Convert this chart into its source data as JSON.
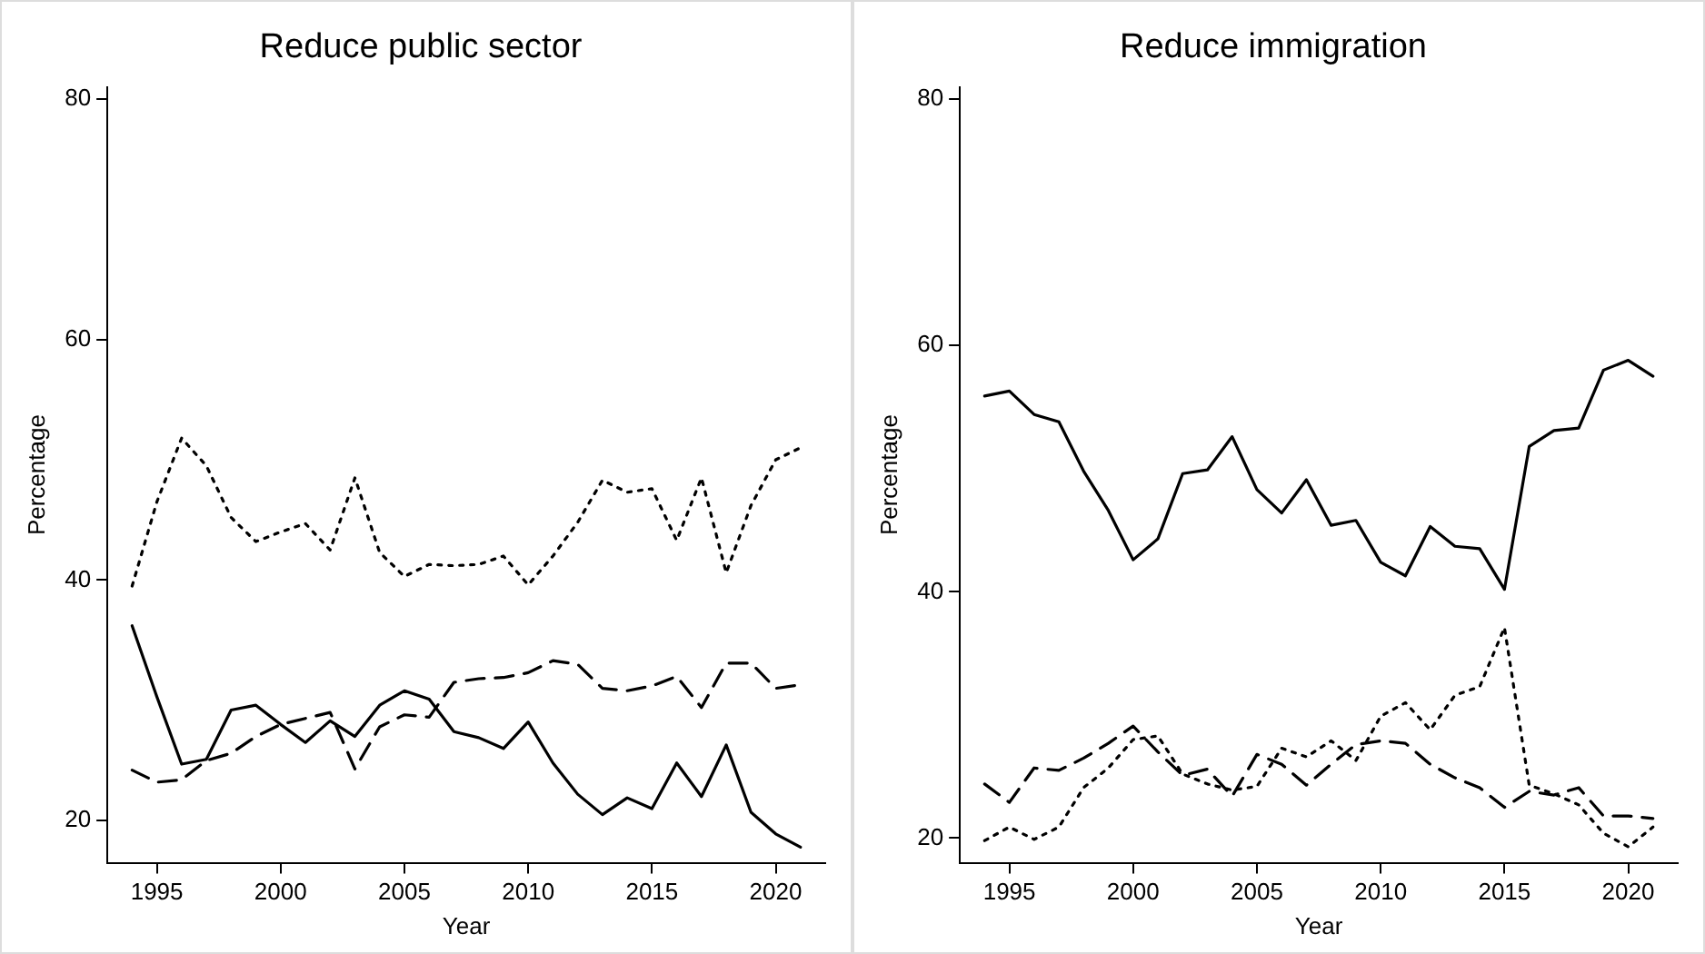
{
  "chart_data": [
    {
      "type": "line",
      "title": "Reduce public sector",
      "xlabel": "Year",
      "ylabel": "Percentage",
      "x": [
        1994,
        1995,
        1996,
        1997,
        1998,
        1999,
        2000,
        2001,
        2002,
        2003,
        2004,
        2005,
        2006,
        2007,
        2008,
        2009,
        2010,
        2011,
        2012,
        2013,
        2014,
        2015,
        2016,
        2017,
        2018,
        2019,
        2020,
        2021
      ],
      "xlim": [
        1993,
        2022
      ],
      "xticks": [
        1995,
        2000,
        2005,
        2010,
        2015,
        2020
      ],
      "ylim": [
        16.5,
        81
      ],
      "yticks": [
        20,
        40,
        60,
        80
      ],
      "grid": false,
      "legend": false,
      "marker": "none",
      "series": [
        {
          "color": "#000000",
          "line_style": "solid",
          "values": [
            36.2,
            30.3,
            24.7,
            25.1,
            29.2,
            29.6,
            28,
            26.5,
            28.3,
            27,
            29.6,
            30.8,
            30.1,
            27.4,
            26.9,
            26,
            28.2,
            24.8,
            22.2,
            20.5,
            21.9,
            21,
            24.8,
            22,
            26.3,
            20.7,
            18.9,
            17.8
          ]
        },
        {
          "color": "#000000",
          "line_style": "dashed",
          "values": [
            24.2,
            23.2,
            23.4,
            25,
            25.6,
            27,
            28,
            28.5,
            29,
            24.3,
            27.8,
            28.8,
            28.6,
            31.5,
            31.8,
            31.9,
            32.3,
            33.3,
            33,
            31,
            30.8,
            31.2,
            32,
            29.4,
            33.1,
            33.1,
            31,
            31.3
          ]
        },
        {
          "color": "#000000",
          "line_style": "dotted",
          "values": [
            39.5,
            46.5,
            51.8,
            49.5,
            45.2,
            43.2,
            44,
            44.7,
            42.5,
            48.5,
            42.3,
            40.3,
            41.3,
            41.2,
            41.3,
            42,
            39.6,
            42,
            44.8,
            48.3,
            47.3,
            47.6,
            43.3,
            48.5,
            40.6,
            46.2,
            50,
            51
          ]
        }
      ]
    },
    {
      "type": "line",
      "title": "Reduce immigration",
      "xlabel": "Year",
      "ylabel": "Percentage",
      "x": [
        1994,
        1995,
        1996,
        1997,
        1998,
        1999,
        2000,
        2001,
        2002,
        2003,
        2004,
        2005,
        2006,
        2007,
        2008,
        2009,
        2010,
        2011,
        2012,
        2013,
        2014,
        2015,
        2016,
        2017,
        2018,
        2019,
        2020,
        2021
      ],
      "xlim": [
        1993,
        2022
      ],
      "xticks": [
        1995,
        2000,
        2005,
        2010,
        2015,
        2020
      ],
      "ylim": [
        18,
        81
      ],
      "yticks": [
        20,
        40,
        60,
        80
      ],
      "grid": false,
      "legend": false,
      "marker": "none",
      "series": [
        {
          "color": "#000000",
          "line_style": "solid",
          "values": [
            55.9,
            56.3,
            54.4,
            53.8,
            49.8,
            46.6,
            42.6,
            44.3,
            49.6,
            49.9,
            52.6,
            48.3,
            46.4,
            49.1,
            45.4,
            45.8,
            42.4,
            41.3,
            45.3,
            43.7,
            43.5,
            40.2,
            51.8,
            53.1,
            53.3,
            58,
            58.8,
            57.5
          ]
        },
        {
          "color": "#000000",
          "line_style": "dashed",
          "values": [
            24.4,
            22.9,
            25.7,
            25.5,
            26.5,
            27.7,
            29.1,
            27,
            25.1,
            25.6,
            23.4,
            26.8,
            26,
            24.3,
            26,
            27.6,
            27.9,
            27.7,
            26,
            24.9,
            24.1,
            22.5,
            23.8,
            23.5,
            24.1,
            21.8,
            21.8,
            21.6
          ]
        },
        {
          "color": "#000000",
          "line_style": "dotted",
          "values": [
            19.8,
            20.9,
            19.9,
            20.9,
            24.1,
            25.7,
            28,
            28.3,
            25.2,
            24.4,
            23.9,
            24.2,
            27.3,
            26.6,
            27.9,
            26.3,
            29.9,
            31,
            28.8,
            31.6,
            32.3,
            37.1,
            24.3,
            23.6,
            22.7,
            20.4,
            19.3,
            20.9
          ]
        }
      ]
    }
  ]
}
